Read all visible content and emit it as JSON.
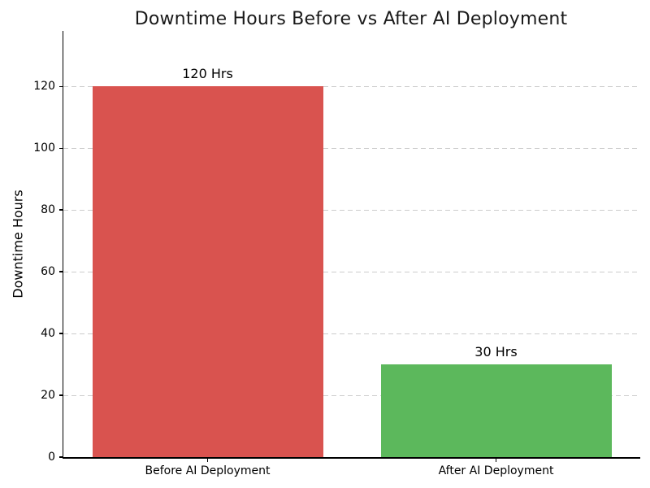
{
  "chart_data": {
    "type": "bar",
    "title": "Downtime Hours Before vs After AI Deployment",
    "categories": [
      "Before AI Deployment",
      "After AI Deployment"
    ],
    "values": [
      120,
      30
    ],
    "bar_labels": [
      "120 Hrs",
      "30 Hrs"
    ],
    "bar_colors": [
      "#d9534f",
      "#5cb85c"
    ],
    "xlabel": "",
    "ylabel": "Downtime Hours",
    "ylim": [
      0,
      138
    ],
    "yticks": [
      0,
      20,
      40,
      60,
      80,
      100,
      120
    ],
    "bar_width_fraction": 0.8,
    "grid": "horizontal-dashed",
    "grid_color": "#cccccc",
    "axis_color": "#000000",
    "title_color": "#1a1a1a",
    "text_color": "#000000",
    "background": "#ffffff",
    "legend": "none"
  }
}
